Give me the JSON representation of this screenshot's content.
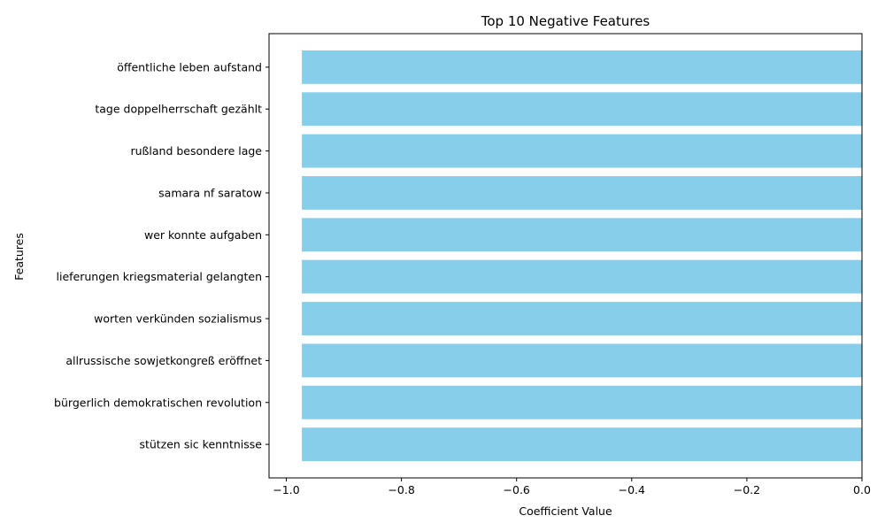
{
  "chart_data": {
    "type": "bar",
    "orientation": "horizontal",
    "title": "Top 10 Negative Features",
    "xlabel": "Coefficient Value",
    "ylabel": "Features",
    "xlim": [
      -1.03,
      0.0
    ],
    "xticks": [
      -1.0,
      -0.8,
      -0.6,
      -0.4,
      -0.2,
      0.0
    ],
    "xtick_labels": [
      "−1.0",
      "−0.8",
      "−0.6",
      "−0.4",
      "−0.2",
      "0.0"
    ],
    "grid": false,
    "bar_color": "#87ceeb",
    "categories": [
      "öffentliche leben aufstand",
      "tage doppelherrschaft gezählt",
      "rußland besondere lage",
      "samara nf saratow",
      "wer konnte aufgaben",
      "lieferungen kriegsmaterial gelangten",
      "worten verkünden sozialismus",
      "allrussische sowjetkongreß eröffnet",
      "bürgerlich demokratischen revolution",
      "stützen sic kenntnisse"
    ],
    "values": [
      -0.973,
      -0.973,
      -0.973,
      -0.973,
      -0.973,
      -0.973,
      -0.973,
      -0.973,
      -0.973,
      -0.973
    ]
  }
}
